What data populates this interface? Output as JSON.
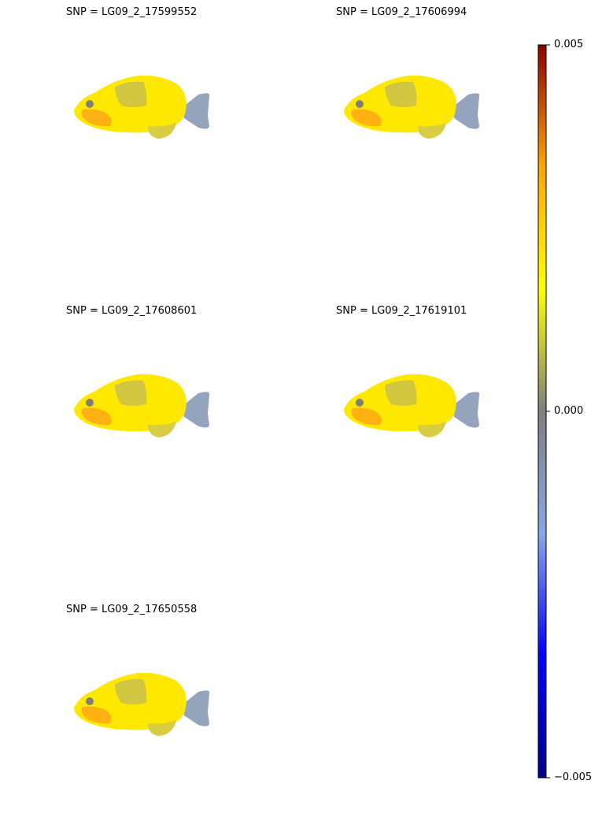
{
  "chart_data": {
    "type": "heatmap",
    "panels": [
      {
        "title": "SNP = LG09_2_17599552"
      },
      {
        "title": "SNP = LG09_2_17606994"
      },
      {
        "title": "SNP = LG09_2_17608601"
      },
      {
        "title": "SNP = LG09_2_17619101"
      },
      {
        "title": "SNP = LG09_2_17650558"
      }
    ],
    "colorbar": {
      "min": -0.005,
      "max": 0.005,
      "ticks": [
        {
          "value": 0.005,
          "label": "0.005"
        },
        {
          "value": 0.0,
          "label": "0.000"
        },
        {
          "value": -0.005,
          "label": "−0.005"
        }
      ],
      "colors": [
        "#00008b",
        "#0000ff",
        "#87a8e6",
        "#7f7f7f",
        "#ffff00",
        "#ffa500",
        "#8b0000"
      ]
    },
    "fish_colors": {
      "body": "#ffe800",
      "dorsal_patch": "#c8c04a",
      "cheek": "#ff9a18",
      "tail": "#94a4bc",
      "eye": "#808070",
      "fin": "#d8cc40"
    }
  }
}
